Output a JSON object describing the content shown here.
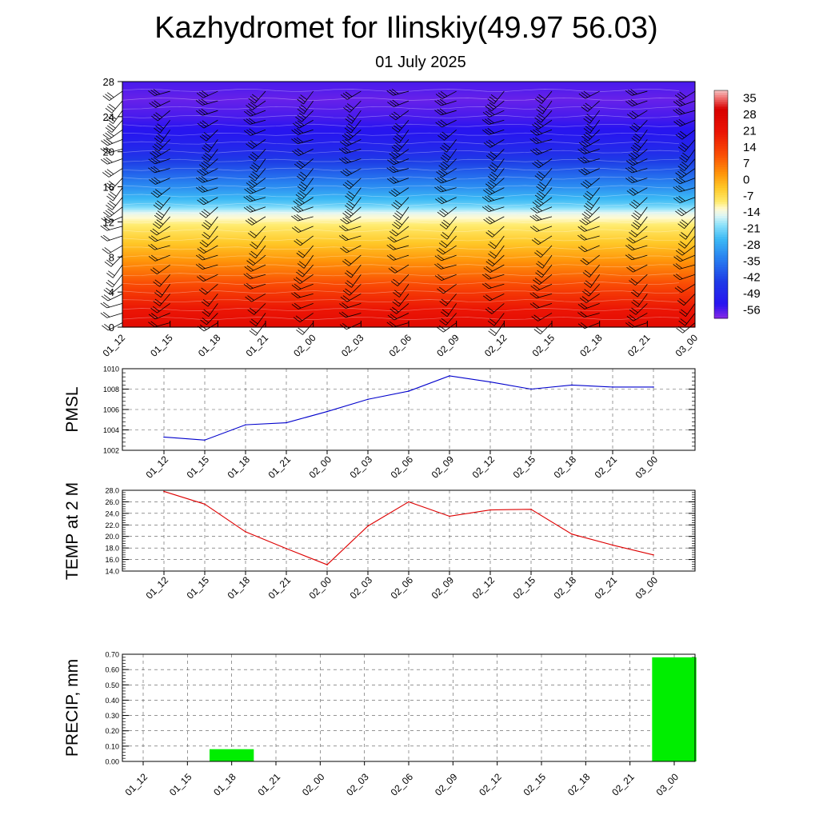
{
  "title": "Kazhydromet for Ilinskiy(49.97 56.03)",
  "subtitle": "01 July 2025",
  "colors": {
    "pmsl_line": "#0000cc",
    "temp_line": "#dd0000",
    "precip_bar": "#00ee00",
    "grid": "#555555",
    "barb": "#000000"
  },
  "chart_data": [
    {
      "type": "heatmap",
      "x": [
        "01_12",
        "01_15",
        "01_18",
        "01_21",
        "02_00",
        "02_03",
        "02_06",
        "02_09",
        "02_12",
        "02_15",
        "02_18",
        "02_21",
        "03_00"
      ],
      "y_ticks": [
        0,
        4,
        8,
        12,
        16,
        20,
        24,
        28
      ],
      "ylim": [
        0,
        28
      ],
      "colorbar_labels": [
        "35",
        "28",
        "21",
        "14",
        "7",
        "0",
        "-7",
        "-14",
        "-21",
        "-28",
        "-35",
        "-42",
        "-49",
        "-56"
      ],
      "colorbar_range": [
        -60,
        38
      ],
      "description_values": {
        "levels": [
          0,
          2,
          4,
          6,
          8,
          10,
          12,
          13,
          14,
          16,
          18,
          20,
          22,
          24,
          26,
          28
        ],
        "temperature_by_level": [
          25,
          20,
          14,
          7,
          1,
          -5,
          -11,
          -15,
          -23,
          -32,
          -40,
          -48,
          -53,
          -56,
          -58,
          -56
        ]
      },
      "wind_barbs": true
    },
    {
      "type": "line",
      "ylabel": "PMSL",
      "x": [
        "01_12",
        "01_15",
        "01_18",
        "01_21",
        "02_00",
        "02_03",
        "02_06",
        "02_09",
        "02_12",
        "02_15",
        "02_18",
        "02_21",
        "03_00"
      ],
      "values": [
        1003.3,
        1003.0,
        1004.5,
        1004.7,
        1005.8,
        1007.0,
        1007.8,
        1009.3,
        1008.7,
        1008.0,
        1008.4,
        1008.2,
        1008.2
      ],
      "ylim": [
        1002,
        1010
      ],
      "y_ticks": [
        "1002",
        "1004",
        "1006",
        "1008",
        "1010"
      ],
      "grid": true
    },
    {
      "type": "line",
      "ylabel": "TEMP at 2 M",
      "x": [
        "01_12",
        "01_15",
        "01_18",
        "01_21",
        "02_00",
        "02_03",
        "02_06",
        "02_09",
        "02_12",
        "02_15",
        "02_18",
        "02_21",
        "03_00"
      ],
      "values": [
        27.8,
        25.6,
        20.8,
        17.9,
        15.1,
        21.8,
        26.0,
        23.5,
        24.6,
        24.7,
        20.4,
        18.5,
        16.8
      ],
      "ylim": [
        14,
        28
      ],
      "y_ticks": [
        "14.0",
        "16.0",
        "18.0",
        "20.0",
        "22.0",
        "24.0",
        "26.0",
        "28.0"
      ],
      "grid": true
    },
    {
      "type": "bar",
      "ylabel": "PRECIP, mm",
      "categories": [
        "01_12",
        "01_15",
        "01_18",
        "01_21",
        "02_00",
        "02_03",
        "02_06",
        "02_09",
        "02_12",
        "02_15",
        "02_18",
        "02_21",
        "03_00"
      ],
      "values": [
        0,
        0,
        0.08,
        0,
        0,
        0,
        0,
        0,
        0,
        0,
        0,
        0,
        0.68
      ],
      "ylim": [
        0,
        0.7
      ],
      "y_ticks": [
        "0.00",
        "0.10",
        "0.20",
        "0.30",
        "0.40",
        "0.50",
        "0.60",
        "0.70"
      ],
      "grid": true
    }
  ]
}
